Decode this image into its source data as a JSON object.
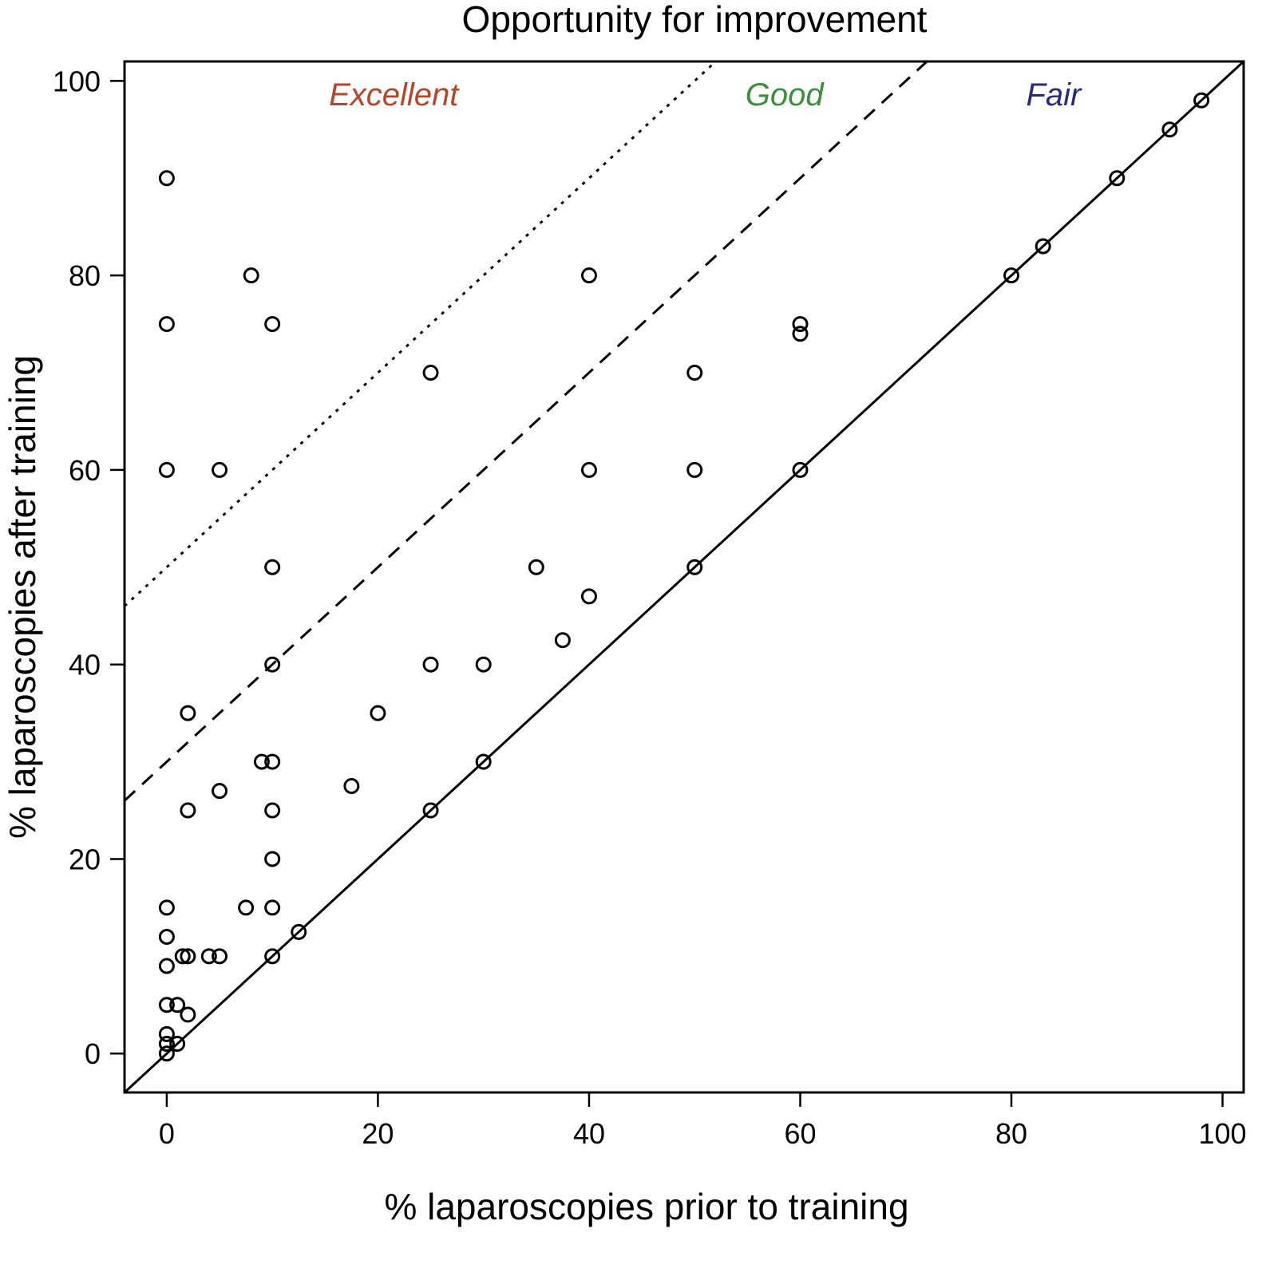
{
  "chart_data": {
    "type": "scatter",
    "title": "Opportunity for improvement",
    "xlabel": "% laparoscopies prior to training",
    "ylabel": "% laparoscopies after training",
    "xlim": [
      -4,
      102
    ],
    "ylim": [
      -4,
      102
    ],
    "x_ticks": [
      0,
      20,
      40,
      60,
      80,
      100
    ],
    "y_ticks": [
      0,
      20,
      40,
      60,
      80,
      100
    ],
    "grid": false,
    "reference_lines": [
      {
        "intercept": 0,
        "slope": 1,
        "style": "solid"
      },
      {
        "intercept": 30,
        "slope": 1,
        "style": "dashed"
      },
      {
        "intercept": 50,
        "slope": 1,
        "style": "dotted"
      }
    ],
    "region_labels": [
      {
        "text": "Excellent",
        "x": 21.5,
        "y": 97.5,
        "color": "#b5452b"
      },
      {
        "text": "Good",
        "x": 58.5,
        "y": 97.5,
        "color": "#3a8f3a"
      },
      {
        "text": "Fair",
        "x": 84,
        "y": 97.5,
        "color": "#2a2a7a"
      }
    ],
    "points": [
      [
        0,
        90
      ],
      [
        0,
        75
      ],
      [
        0,
        60
      ],
      [
        0,
        15
      ],
      [
        0,
        12
      ],
      [
        0,
        9
      ],
      [
        0,
        5
      ],
      [
        0,
        2
      ],
      [
        0,
        1
      ],
      [
        0,
        0
      ],
      [
        1,
        5
      ],
      [
        1,
        1
      ],
      [
        2,
        35
      ],
      [
        2,
        25
      ],
      [
        2,
        10
      ],
      [
        1.5,
        10
      ],
      [
        2,
        4
      ],
      [
        4,
        10
      ],
      [
        5,
        10
      ],
      [
        5,
        60
      ],
      [
        5,
        27
      ],
      [
        7.5,
        15
      ],
      [
        8,
        80
      ],
      [
        9,
        30
      ],
      [
        10,
        75
      ],
      [
        10,
        50
      ],
      [
        10,
        40
      ],
      [
        10,
        30
      ],
      [
        10,
        25
      ],
      [
        10,
        20
      ],
      [
        10,
        15
      ],
      [
        10,
        10
      ],
      [
        12.5,
        12.5
      ],
      [
        17.5,
        27.5
      ],
      [
        20,
        35
      ],
      [
        25,
        70
      ],
      [
        25,
        40
      ],
      [
        25,
        25
      ],
      [
        30,
        40
      ],
      [
        30,
        30
      ],
      [
        35,
        50
      ],
      [
        37.5,
        42.5
      ],
      [
        40,
        80
      ],
      [
        40,
        60
      ],
      [
        40,
        47
      ],
      [
        50,
        70
      ],
      [
        50,
        60
      ],
      [
        50,
        50
      ],
      [
        60,
        75
      ],
      [
        60,
        74
      ],
      [
        60,
        60
      ],
      [
        80,
        80
      ],
      [
        83,
        83
      ],
      [
        90,
        90
      ],
      [
        95,
        95
      ],
      [
        98,
        98
      ]
    ]
  }
}
